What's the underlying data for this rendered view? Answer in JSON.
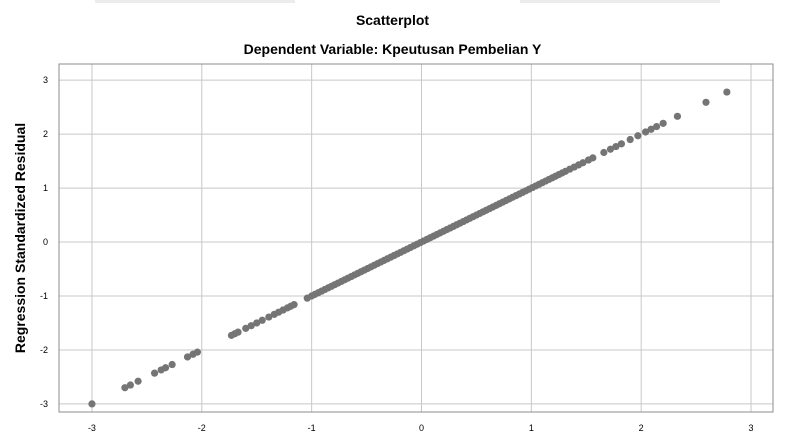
{
  "chart_data": {
    "type": "scatter",
    "title": "Scatterplot",
    "subtitle": "Dependent Variable: Kpeutusan Pembelian Y",
    "xlabel": "",
    "ylabel": "Regression Standardized Residual",
    "xlim": [
      -3.3,
      3.2
    ],
    "ylim": [
      -3.15,
      3.3
    ],
    "xticks": [
      "-3",
      "-2",
      "-1",
      "0",
      "1",
      "2",
      "3"
    ],
    "yticks": [
      "-3",
      "-2",
      "-1",
      "0",
      "1",
      "2",
      "3"
    ],
    "grid": true,
    "point_color": "#757575",
    "points": [
      [
        -3.0,
        -3.0
      ],
      [
        -2.7,
        -2.7
      ],
      [
        -2.65,
        -2.65
      ],
      [
        -2.58,
        -2.58
      ],
      [
        -2.43,
        -2.43
      ],
      [
        -2.37,
        -2.37
      ],
      [
        -2.33,
        -2.33
      ],
      [
        -2.27,
        -2.27
      ],
      [
        -2.13,
        -2.13
      ],
      [
        -2.08,
        -2.08
      ],
      [
        -2.04,
        -2.04
      ],
      [
        -1.73,
        -1.73
      ],
      [
        -1.7,
        -1.7
      ],
      [
        -1.67,
        -1.67
      ],
      [
        -1.6,
        -1.6
      ],
      [
        -1.55,
        -1.55
      ],
      [
        -1.5,
        -1.5
      ],
      [
        -1.45,
        -1.45
      ],
      [
        -1.39,
        -1.39
      ],
      [
        -1.34,
        -1.34
      ],
      [
        -1.3,
        -1.3
      ],
      [
        -1.26,
        -1.26
      ],
      [
        -1.22,
        -1.22
      ],
      [
        -1.19,
        -1.19
      ],
      [
        -1.16,
        -1.16
      ],
      [
        -1.04,
        -1.04
      ],
      [
        -1.0,
        -1.0
      ],
      [
        -0.97,
        -0.97
      ],
      [
        -0.94,
        -0.94
      ],
      [
        -0.91,
        -0.91
      ],
      [
        -0.88,
        -0.88
      ],
      [
        -0.85,
        -0.85
      ],
      [
        -0.82,
        -0.82
      ],
      [
        -0.79,
        -0.79
      ],
      [
        -0.76,
        -0.76
      ],
      [
        -0.73,
        -0.73
      ],
      [
        -0.7,
        -0.7
      ],
      [
        -0.67,
        -0.67
      ],
      [
        -0.64,
        -0.64
      ],
      [
        -0.61,
        -0.61
      ],
      [
        -0.58,
        -0.58
      ],
      [
        -0.55,
        -0.55
      ],
      [
        -0.52,
        -0.52
      ],
      [
        -0.49,
        -0.49
      ],
      [
        -0.46,
        -0.46
      ],
      [
        -0.43,
        -0.43
      ],
      [
        -0.4,
        -0.4
      ],
      [
        -0.37,
        -0.37
      ],
      [
        -0.34,
        -0.34
      ],
      [
        -0.31,
        -0.31
      ],
      [
        -0.28,
        -0.28
      ],
      [
        -0.25,
        -0.25
      ],
      [
        -0.22,
        -0.22
      ],
      [
        -0.19,
        -0.19
      ],
      [
        -0.16,
        -0.16
      ],
      [
        -0.13,
        -0.13
      ],
      [
        -0.1,
        -0.1
      ],
      [
        -0.07,
        -0.07
      ],
      [
        -0.04,
        -0.04
      ],
      [
        -0.01,
        -0.01
      ],
      [
        0.02,
        0.02
      ],
      [
        0.05,
        0.05
      ],
      [
        0.08,
        0.08
      ],
      [
        0.11,
        0.11
      ],
      [
        0.14,
        0.14
      ],
      [
        0.17,
        0.17
      ],
      [
        0.2,
        0.2
      ],
      [
        0.23,
        0.23
      ],
      [
        0.26,
        0.26
      ],
      [
        0.29,
        0.29
      ],
      [
        0.32,
        0.32
      ],
      [
        0.35,
        0.35
      ],
      [
        0.38,
        0.38
      ],
      [
        0.41,
        0.41
      ],
      [
        0.44,
        0.44
      ],
      [
        0.47,
        0.47
      ],
      [
        0.5,
        0.5
      ],
      [
        0.53,
        0.53
      ],
      [
        0.56,
        0.56
      ],
      [
        0.59,
        0.59
      ],
      [
        0.62,
        0.62
      ],
      [
        0.65,
        0.65
      ],
      [
        0.68,
        0.68
      ],
      [
        0.71,
        0.71
      ],
      [
        0.74,
        0.74
      ],
      [
        0.77,
        0.77
      ],
      [
        0.8,
        0.8
      ],
      [
        0.83,
        0.83
      ],
      [
        0.86,
        0.86
      ],
      [
        0.89,
        0.89
      ],
      [
        0.92,
        0.92
      ],
      [
        0.95,
        0.95
      ],
      [
        0.98,
        0.98
      ],
      [
        1.01,
        1.01
      ],
      [
        1.04,
        1.04
      ],
      [
        1.07,
        1.07
      ],
      [
        1.1,
        1.1
      ],
      [
        1.13,
        1.13
      ],
      [
        1.16,
        1.16
      ],
      [
        1.19,
        1.19
      ],
      [
        1.22,
        1.22
      ],
      [
        1.25,
        1.25
      ],
      [
        1.28,
        1.28
      ],
      [
        1.31,
        1.31
      ],
      [
        1.35,
        1.35
      ],
      [
        1.39,
        1.39
      ],
      [
        1.43,
        1.43
      ],
      [
        1.47,
        1.47
      ],
      [
        1.52,
        1.52
      ],
      [
        1.56,
        1.56
      ],
      [
        1.66,
        1.66
      ],
      [
        1.72,
        1.72
      ],
      [
        1.77,
        1.77
      ],
      [
        1.82,
        1.82
      ],
      [
        1.9,
        1.9
      ],
      [
        1.97,
        1.97
      ],
      [
        2.04,
        2.04
      ],
      [
        2.09,
        2.09
      ],
      [
        2.14,
        2.14
      ],
      [
        2.2,
        2.2
      ],
      [
        2.33,
        2.33
      ],
      [
        2.59,
        2.59
      ],
      [
        2.78,
        2.78
      ]
    ]
  }
}
